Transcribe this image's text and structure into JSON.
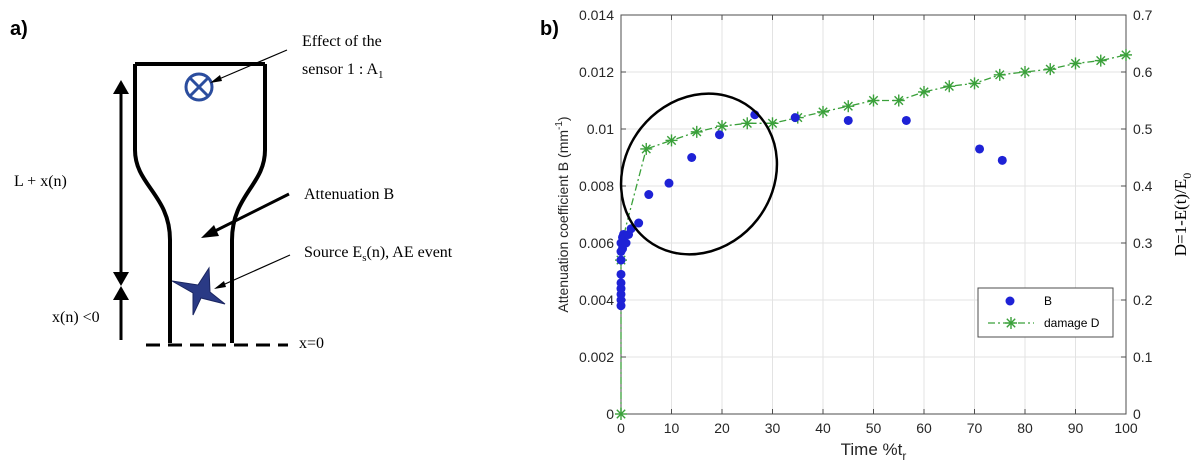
{
  "panel_a": {
    "label": "a)",
    "sensor_label_line1": "Effect of the",
    "sensor_label_line2": "sensor 1 : A",
    "sensor_label_sub": "1",
    "length_label": "L + x(n)",
    "attenuation_label": "Attenuation  B",
    "source_label_pre": "Source E",
    "source_label_sub": "s",
    "source_label_post": "(n), AE event",
    "xn_label": "x(n) <0",
    "x0_label": "x=0"
  },
  "panel_b": {
    "label": "b)"
  },
  "chart_data": {
    "type": "scatter",
    "xlabel": "Time %t",
    "xlabel_sub": "r",
    "ylabel_left": "Attenuation coefficient B (mm",
    "ylabel_left_sup": "-1",
    "ylabel_left_end": ")",
    "ylabel_right_pre": "D=1-E(t)/E",
    "ylabel_right_sub": "0",
    "xlim": [
      0,
      100
    ],
    "ylim_left": [
      0,
      0.014
    ],
    "ylim_right": [
      0,
      0.7
    ],
    "x_ticks": [
      0,
      10,
      20,
      30,
      40,
      50,
      60,
      70,
      80,
      90,
      100
    ],
    "y_left_ticks": [
      0,
      0.002,
      0.004,
      0.006,
      0.008,
      0.01,
      0.012,
      0.014
    ],
    "y_left_tick_labels": [
      "0",
      "0.002",
      "0.004",
      "0.006",
      "0.008",
      "0.01",
      "0.012",
      "0.014"
    ],
    "y_right_ticks": [
      0,
      0.1,
      0.2,
      0.3,
      0.4,
      0.5,
      0.6,
      0.7
    ],
    "y_right_tick_labels": [
      "0",
      "0.1",
      "0.2",
      "0.3",
      "0.4",
      "0.5",
      "0.6",
      "0.7"
    ],
    "grid": true,
    "legend_position": "lower-right",
    "colors": {
      "B": "#1e22d6",
      "damage": "#3aa03a"
    },
    "series": [
      {
        "name": "B",
        "axis": "left",
        "style": "markers",
        "x": [
          0,
          0,
          0,
          0,
          0,
          0,
          0,
          0,
          0,
          0.3,
          0.3,
          0.5,
          0.5,
          1,
          1.5,
          2,
          3.5,
          5.5,
          9.5,
          14,
          19.5,
          26.5,
          34.5,
          45,
          56.5,
          71,
          75.5
        ],
        "y": [
          0.0038,
          0.004,
          0.0042,
          0.0044,
          0.0046,
          0.0049,
          0.0054,
          0.0057,
          0.006,
          0.0058,
          0.0062,
          0.0061,
          0.0063,
          0.006,
          0.0063,
          0.0065,
          0.0067,
          0.0077,
          0.0081,
          0.009,
          0.0098,
          0.0105,
          0.0104,
          0.0103,
          0.0103,
          0.0093,
          0.0089
        ]
      },
      {
        "name": "damage D",
        "axis": "right",
        "style": "dash-dot-star",
        "x": [
          0,
          0,
          0.5,
          1,
          5,
          10,
          15,
          20,
          25,
          30,
          35,
          40,
          45,
          50,
          55,
          60,
          65,
          70,
          75,
          80,
          85,
          90,
          95,
          100
        ],
        "y": [
          0,
          0.27,
          0.31,
          0.33,
          0.465,
          0.48,
          0.495,
          0.505,
          0.51,
          0.51,
          0.52,
          0.53,
          0.54,
          0.55,
          0.55,
          0.565,
          0.575,
          0.58,
          0.595,
          0.6,
          0.605,
          0.615,
          0.62,
          0.63
        ]
      }
    ]
  }
}
